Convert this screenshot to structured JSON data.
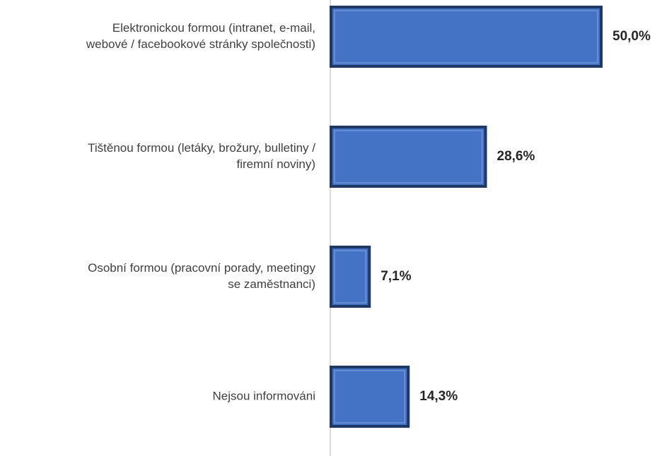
{
  "chart_data": {
    "type": "barh",
    "categories": [
      [
        "Elektronickou formou (intranet, e-mail,",
        "webové / facebookové stránky společnosti)"
      ],
      [
        "Tištěnou formou (letáky, brožury, bulletiny /",
        "firemní noviny)"
      ],
      [
        "Osobní formou (pracovní porady, meetingy",
        "se zaměstnanci)"
      ],
      [
        "Nejsou informováni"
      ]
    ],
    "values": [
      50.0,
      28.6,
      7.1,
      14.3
    ],
    "value_labels": [
      "50,0%",
      "28,6%",
      "7,1%",
      "14,3%"
    ],
    "color": "#4472c4"
  }
}
